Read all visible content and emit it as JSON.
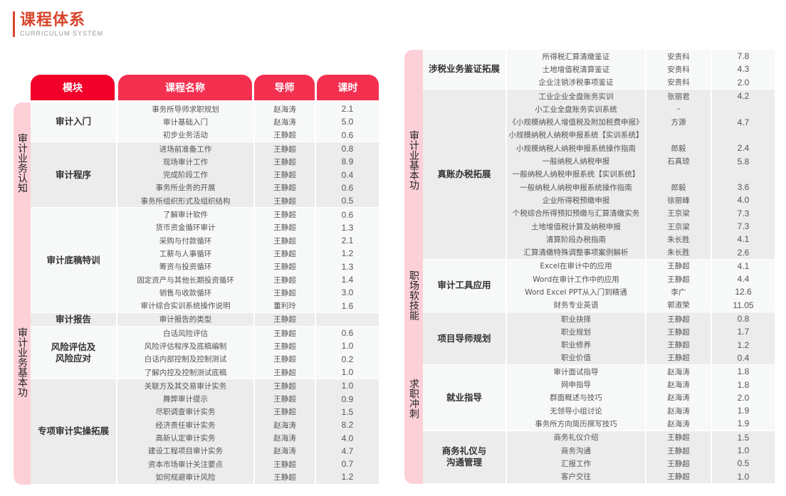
{
  "header": {
    "title": "课程体系",
    "subtitle": "CURRICULUM SYSTEM"
  },
  "columns": {
    "module": "模块",
    "course": "课程名称",
    "teacher": "导师",
    "hours": "课时"
  },
  "colors": {
    "accent": "#d9442b",
    "header_red": "#f2002a",
    "header_pink": "#f43050",
    "strip": "#fdd0d8"
  },
  "left": {
    "categories": [
      "审计业务认知",
      "审计业务基本功"
    ],
    "groups": [
      {
        "module": "审计入门",
        "rows": [
          [
            "事务所导师求职规划",
            "赵海涛",
            "2.1"
          ],
          [
            "审计基础入门",
            "赵海涛",
            "5.0"
          ],
          [
            "初步业务活动",
            "王静超",
            "0.6"
          ]
        ]
      },
      {
        "module": "审计程序",
        "rows": [
          [
            "进场前准备工作",
            "王静超",
            "0.8"
          ],
          [
            "现场审计工作",
            "王静超",
            "8.9"
          ],
          [
            "完成阶段工作",
            "王静超",
            "0.4"
          ],
          [
            "事务所业务的开展",
            "王静超",
            "0.6"
          ],
          [
            "事务所组织形式及组织结构",
            "王静超",
            "0.5"
          ]
        ]
      },
      {
        "module": "审计底稿特训",
        "rows": [
          [
            "了解审计软件",
            "王静超",
            "0.6"
          ],
          [
            "货币资金循环审计",
            "王静超",
            "1.3"
          ],
          [
            "采购与付款循环",
            "王静超",
            "2.1"
          ],
          [
            "工薪与人事循环",
            "王静超",
            "1.2"
          ],
          [
            "筹资与投资循环",
            "王静超",
            "1.3"
          ],
          [
            "固定资产与其他长期投资循环",
            "王静超",
            "1.4"
          ],
          [
            "销售与收款循环",
            "王静超",
            "3.0"
          ],
          [
            "审计综合实训系统操作说明",
            "董利玲",
            "1.6"
          ]
        ]
      },
      {
        "module": "审计报告",
        "rows": [
          [
            "审计报告的类型",
            "王静超",
            ""
          ]
        ]
      },
      {
        "module": "风险评估及\n风险应对",
        "rows": [
          [
            "白话风险评估",
            "王静超",
            "0.6"
          ],
          [
            "风险评估程序及底稿编制",
            "王静超",
            "1.0"
          ],
          [
            "白话内部控制及控制测试",
            "王静超",
            "0.2"
          ],
          [
            "了解内控及控制测试底稿",
            "王静超",
            "1.0"
          ]
        ]
      },
      {
        "module": "专项审计实操拓展",
        "rows": [
          [
            "关联方及其交易审计实务",
            "王静超",
            "1.0"
          ],
          [
            "舞弊审计提示",
            "王静超",
            "0.9"
          ],
          [
            "尽职调查审计实务",
            "王静超",
            "1.5"
          ],
          [
            "经济责任审计实务",
            "赵海涛",
            "8.2"
          ],
          [
            "高新认定审计实务",
            "赵海涛",
            "4.0"
          ],
          [
            "建设工程项目审计实务",
            "赵海涛",
            "4.7"
          ],
          [
            "资本市场审计关注要点",
            "王静超",
            "0.7"
          ],
          [
            "如何规避审计风险",
            "王静超",
            "1.2"
          ]
        ]
      }
    ]
  },
  "right": {
    "categories": [
      "审计业基本功",
      "职场软技能",
      "求职冲刺"
    ],
    "groups": [
      {
        "module": "涉税业务鉴证拓展",
        "rows": [
          [
            "所得税汇算清缴鉴证",
            "安贵科",
            "7.8"
          ],
          [
            "土地增值税清算鉴证",
            "安贵科",
            "4.3"
          ],
          [
            "企业注销涉税事项鉴证",
            "安贵科",
            "2.0"
          ]
        ]
      },
      {
        "module": "真账办税拓展",
        "rows": [
          [
            "工业企业全盘账务实训",
            "张丽君",
            "4.2"
          ],
          [
            "小工业全盘账务实训系统",
            "–",
            ""
          ],
          [
            "《小规模纳税人增值税及附加税费申报》",
            "方源",
            "4.7"
          ],
          [
            "小规模纳税人纳税申报系统【实训系统】",
            "",
            ""
          ],
          [
            "小规模纳税人纳税申报系统操作指南",
            "郎毅",
            "2.4"
          ],
          [
            "一般纳税人纳税申报",
            "石真琼",
            "5.8"
          ],
          [
            "一般纳税人纳税申报系统【实训系统】",
            "",
            ""
          ],
          [
            "一般纳税人纳税申报系统操作指南",
            "郎毅",
            "3.6"
          ],
          [
            "企业所得税预缴申报",
            "徐丽峰",
            "4.0"
          ],
          [
            "个税综合所得预扣预缴与汇算清缴实务",
            "王京梁",
            "7.3"
          ],
          [
            "土地增值税计算及纳税申报",
            "王京梁",
            "7.3"
          ],
          [
            "清算阶段办税指南",
            "朱长胜",
            "4.1"
          ],
          [
            "汇算清缴特殊调整事项案例解析",
            "朱长胜",
            "2.6"
          ]
        ]
      },
      {
        "module": "审计工具应用",
        "rows": [
          [
            "Excel在审计中的应用",
            "王静超",
            "4.1"
          ],
          [
            "Word在审计工作中的应用",
            "王静超",
            "4.4"
          ],
          [
            "Word Excel PPT从入门到精通",
            "李广",
            "12.6"
          ],
          [
            "财务专业英语",
            "郭淑荣",
            "11.05"
          ]
        ]
      },
      {
        "module": "项目导师规划",
        "rows": [
          [
            "职业抉择",
            "王静超",
            "0.8"
          ],
          [
            "职业规划",
            "王静超",
            "1.7"
          ],
          [
            "职业修养",
            "王静超",
            "1.2"
          ],
          [
            "职业价值",
            "王静超",
            "0.4"
          ]
        ]
      },
      {
        "module": "就业指导",
        "rows": [
          [
            "审计面试指导",
            "赵海涛",
            "1.8"
          ],
          [
            "网申指导",
            "赵海涛",
            "1.8"
          ],
          [
            "群面概述与技巧",
            "赵海涛",
            "2.0"
          ],
          [
            "无领导小组讨论",
            "赵海涛",
            "1.9"
          ],
          [
            "事务所方向简历撰写技巧",
            "赵海涛",
            "1.9"
          ]
        ]
      },
      {
        "module": "商务礼仪与\n沟通管理",
        "rows": [
          [
            "商务礼仪介绍",
            "王静超",
            "1.5"
          ],
          [
            "商务沟通",
            "王静超",
            "1.0"
          ],
          [
            "汇报工作",
            "王静超",
            "0.5"
          ],
          [
            "客户交往",
            "王静超",
            "1.0"
          ]
        ]
      }
    ]
  }
}
